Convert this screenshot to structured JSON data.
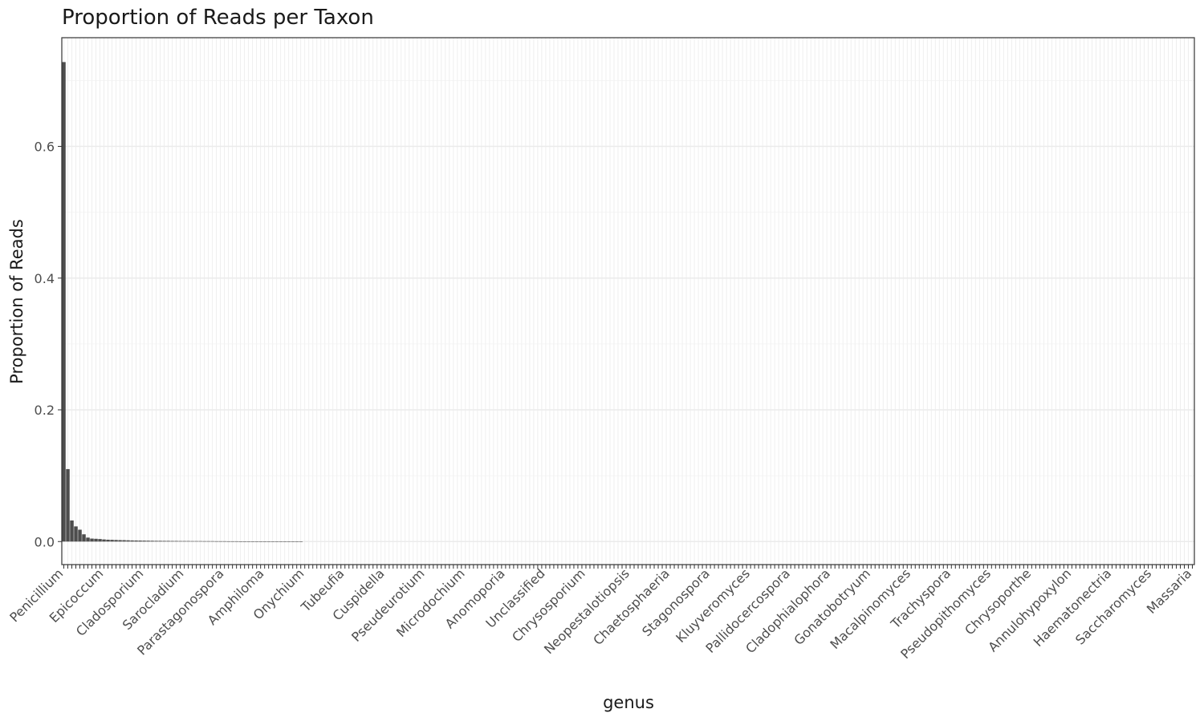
{
  "chart_data": {
    "type": "bar",
    "title": "Proportion of Reads per Taxon",
    "xlabel": "genus",
    "ylabel": "Proportion of Reads",
    "ylim": [
      -0.035,
      0.765
    ],
    "yticks": [
      0.0,
      0.2,
      0.4,
      0.6
    ],
    "ytick_labels": [
      "0.0",
      "0.2",
      "0.4",
      "0.6"
    ],
    "grid": true,
    "legend": "none",
    "bar_color": "#4d4d4d",
    "category_count": 282,
    "legible_category_labels": [
      "Penicillium",
      "Epicoccum",
      "Cladosporium",
      "Sarocladium",
      "Parastagonospora",
      "Amphiloma",
      "Onychium",
      "Tubeufia",
      "Cuspidella",
      "Pseudeurotium",
      "Microdochium",
      "Anomoporia",
      "Unclassified",
      "Chrysosporium",
      "Neopestalotiopsis",
      "Chaetosphaeria",
      "Stagonospora",
      "Kluyveromyces",
      "Pallidocercospora",
      "Cladophialophora",
      "Gonatobotryum",
      "Macalpinomyces",
      "Trachyspora",
      "Pseudopithomyces",
      "Chrysoporthe",
      "Annulohypoxylon",
      "Haematonectria",
      "Saccharomyces",
      "Massaria"
    ],
    "values": [
      0.728,
      0.11,
      0.032,
      0.023,
      0.018,
      0.011,
      0.006,
      0.0045,
      0.0042,
      0.0038,
      0.0032,
      0.0028,
      0.0026,
      0.0024,
      0.0022,
      0.0021,
      0.0019,
      0.0017,
      0.0016,
      0.0015,
      0.0014,
      0.0013,
      0.0012,
      0.0011,
      0.0011,
      0.001,
      0.001,
      0.0009,
      0.0009,
      0.0008,
      0.0008,
      0.0008,
      0.0007,
      0.0007,
      0.0007,
      0.0006,
      0.0006,
      0.0006,
      0.0005,
      0.0005,
      0.0005,
      0.0004,
      0.0004,
      0.0004,
      0.0003,
      0.0003,
      0.0003,
      0.0003,
      0.0002,
      0.0002,
      0.0002,
      0.0002,
      0.0002,
      0.0001,
      0.0001,
      0.0001,
      0.0001,
      0.0001,
      0.0001,
      0.0001
    ]
  }
}
